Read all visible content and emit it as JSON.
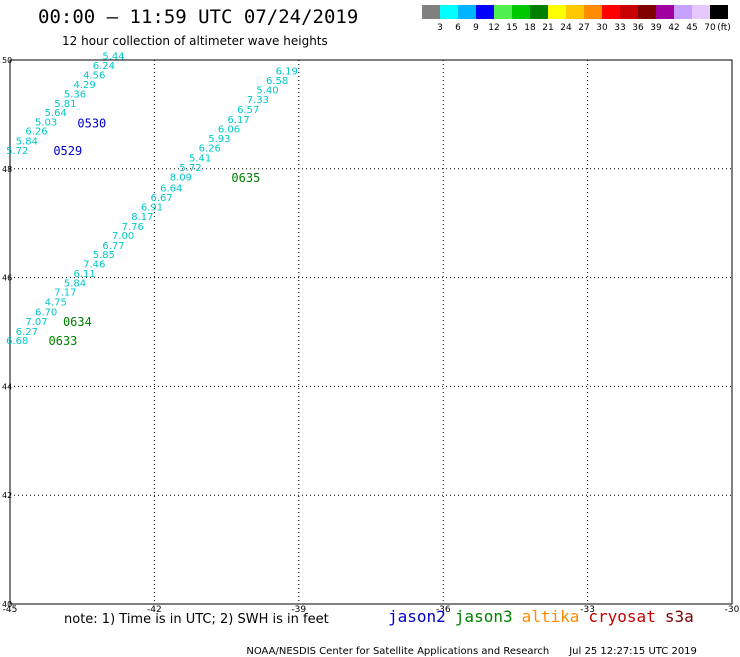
{
  "header": {
    "title": "00:00 – 11:59 UTC 07/24/2019",
    "subtitle": "12 hour collection of altimeter wave heights"
  },
  "color_scale": {
    "colors": [
      "#808080",
      "#00ffff",
      "#00b4ff",
      "#0000ff",
      "#50f050",
      "#00c800",
      "#008000",
      "#ffff00",
      "#ffc800",
      "#ff8c00",
      "#ff0000",
      "#c80000",
      "#800000",
      "#a000a0",
      "#c8a0ff",
      "#e6c8ff",
      "#000000"
    ],
    "labels": [
      "3",
      "6",
      "9",
      "12",
      "15",
      "18",
      "21",
      "24",
      "27",
      "30",
      "33",
      "36",
      "39",
      "42",
      "45",
      "70"
    ],
    "unit": "(ft)"
  },
  "chart_data": {
    "type": "scatter",
    "title": "00:00 – 11:59 UTC 07/24/2019",
    "subtitle": "12 hour collection of altimeter wave heights",
    "xlabel": "",
    "ylabel": "",
    "xlim": [
      -45,
      -30
    ],
    "ylim": [
      40,
      50
    ],
    "x_ticks": [
      "-45",
      "-42",
      "-39",
      "-36",
      "-33",
      "-30"
    ],
    "y_ticks": [
      "50",
      "48",
      "46",
      "44",
      "42",
      "40"
    ],
    "grid": "dotted",
    "point_color": "#00c8c8",
    "track_label_colors": {
      "jason2": "#0000c8",
      "jason3": "#008000"
    },
    "tracks": [
      {
        "name": "0529/0530",
        "satellite": "jason2",
        "labels": [
          {
            "text": "0529",
            "x": -44.1,
            "y": 48.35
          },
          {
            "text": "0530",
            "x": -43.6,
            "y": 48.85
          }
        ],
        "points": [
          {
            "x": -44.85,
            "y": 48.35,
            "v": "5.72"
          },
          {
            "x": -44.65,
            "y": 48.52,
            "v": "5.84"
          },
          {
            "x": -44.45,
            "y": 48.7,
            "v": "6.26"
          },
          {
            "x": -44.25,
            "y": 48.87,
            "v": "5.03"
          },
          {
            "x": -44.05,
            "y": 49.04,
            "v": "5.64"
          },
          {
            "x": -43.85,
            "y": 49.21,
            "v": "5.81"
          },
          {
            "x": -43.65,
            "y": 49.38,
            "v": "5.36"
          },
          {
            "x": -43.45,
            "y": 49.56,
            "v": "4.29"
          },
          {
            "x": -43.25,
            "y": 49.73,
            "v": "4.56"
          },
          {
            "x": -43.05,
            "y": 49.91,
            "v": "6.24"
          },
          {
            "x": -42.85,
            "y": 50.08,
            "v": "5.44"
          }
        ]
      },
      {
        "name": "0633/0634",
        "satellite": "jason3",
        "labels": [
          {
            "text": "0633",
            "x": -44.2,
            "y": 44.85
          },
          {
            "text": "0634",
            "x": -43.9,
            "y": 45.2
          }
        ],
        "points": [
          {
            "x": -44.85,
            "y": 44.85,
            "v": "6.68"
          },
          {
            "x": -44.65,
            "y": 45.02,
            "v": "6.27"
          },
          {
            "x": -44.45,
            "y": 45.2,
            "v": "7.07"
          },
          {
            "x": -44.25,
            "y": 45.38,
            "v": "6.70"
          },
          {
            "x": -44.05,
            "y": 45.56,
            "v": "4.75"
          },
          {
            "x": -43.85,
            "y": 45.74,
            "v": "7.17"
          },
          {
            "x": -43.65,
            "y": 45.91,
            "v": "5.84"
          },
          {
            "x": -43.45,
            "y": 46.08,
            "v": "6.11"
          },
          {
            "x": -43.25,
            "y": 46.26,
            "v": "7.46"
          },
          {
            "x": -43.05,
            "y": 46.43,
            "v": "5.85"
          },
          {
            "x": -42.85,
            "y": 46.6,
            "v": "6.77"
          },
          {
            "x": -42.65,
            "y": 46.78,
            "v": "7.00"
          },
          {
            "x": -42.45,
            "y": 46.95,
            "v": "7.76"
          },
          {
            "x": -42.25,
            "y": 47.13,
            "v": "8.17"
          },
          {
            "x": -42.05,
            "y": 47.31,
            "v": "6.91"
          },
          {
            "x": -41.85,
            "y": 47.48,
            "v": "6.67"
          },
          {
            "x": -41.65,
            "y": 47.66,
            "v": "6.64"
          }
        ]
      },
      {
        "name": "0635",
        "satellite": "jason3",
        "labels": [
          {
            "text": "0635",
            "x": -40.4,
            "y": 47.85
          }
        ],
        "points": [
          {
            "x": -41.45,
            "y": 47.86,
            "v": "8.09"
          },
          {
            "x": -41.25,
            "y": 48.03,
            "v": "5.72"
          },
          {
            "x": -41.05,
            "y": 48.21,
            "v": "5.41"
          },
          {
            "x": -40.85,
            "y": 48.39,
            "v": "6.26"
          },
          {
            "x": -40.65,
            "y": 48.57,
            "v": "5.93"
          },
          {
            "x": -40.45,
            "y": 48.74,
            "v": "6.06"
          },
          {
            "x": -40.25,
            "y": 48.92,
            "v": "6.17"
          },
          {
            "x": -40.05,
            "y": 49.1,
            "v": "6.57"
          },
          {
            "x": -39.85,
            "y": 49.28,
            "v": "7.33"
          },
          {
            "x": -39.65,
            "y": 49.46,
            "v": "5.40"
          },
          {
            "x": -39.45,
            "y": 49.63,
            "v": "6.58"
          },
          {
            "x": -39.25,
            "y": 49.81,
            "v": "6.19"
          }
        ]
      }
    ]
  },
  "note": "note: 1) Time is in UTC; 2) SWH is in feet",
  "legend": [
    {
      "name": "jason2",
      "color": "#0000c8"
    },
    {
      "name": "jason3",
      "color": "#008000"
    },
    {
      "name": "altika",
      "color": "#ff8c00"
    },
    {
      "name": "cryosat",
      "color": "#c80000"
    },
    {
      "name": "s3a",
      "color": "#800000"
    }
  ],
  "footer": {
    "credit": "NOAA/NESDIS Center for Satellite Applications and Research",
    "timestamp": "Jul 25 12:27:15 UTC 2019"
  }
}
